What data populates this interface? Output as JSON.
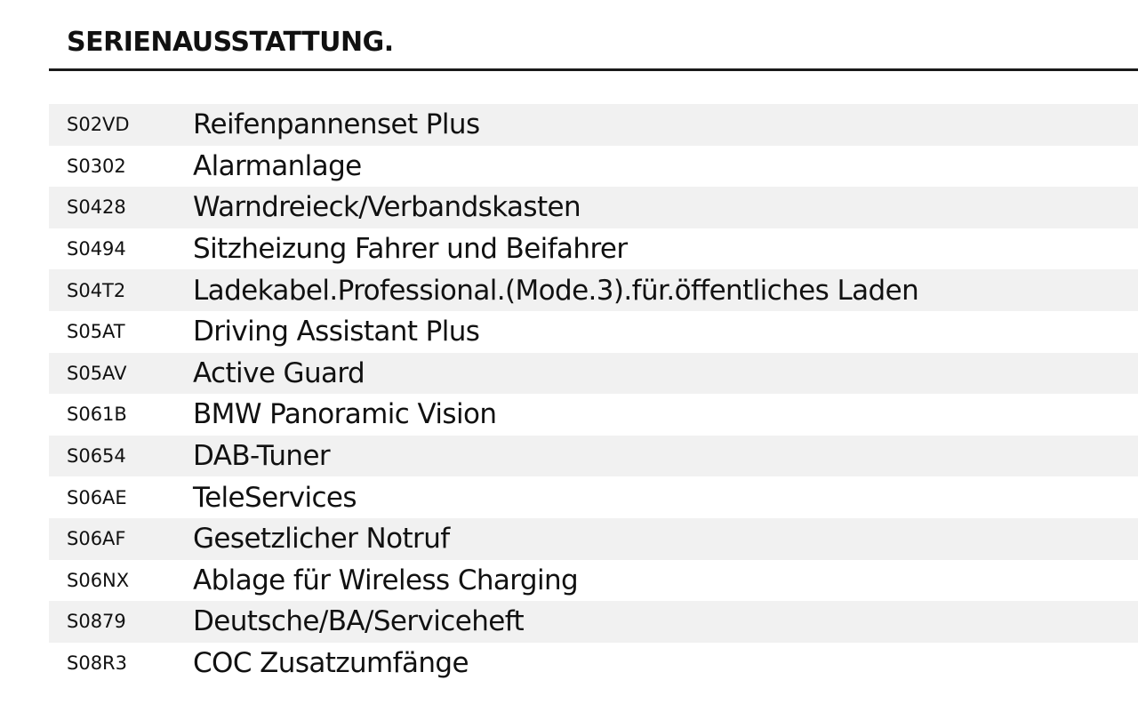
{
  "document": {
    "title": "SERIENAUSSTATTUNG."
  },
  "equipment": {
    "items": [
      {
        "code": "S02VD",
        "label": "Reifenpannenset Plus"
      },
      {
        "code": "S0302",
        "label": "Alarmanlage"
      },
      {
        "code": "S0428",
        "label": "Warndreieck/Verbandskasten"
      },
      {
        "code": "S0494",
        "label": "Sitzheizung Fahrer und Beifahrer"
      },
      {
        "code": "S04T2",
        "label": "Ladekabel.Professional.(Mode.3).für.öffentliches Laden"
      },
      {
        "code": "S05AT",
        "label": "Driving Assistant Plus"
      },
      {
        "code": "S05AV",
        "label": "Active Guard"
      },
      {
        "code": "S061B",
        "label": "BMW Panoramic Vision"
      },
      {
        "code": "S0654",
        "label": "DAB-Tuner"
      },
      {
        "code": "S06AE",
        "label": "TeleServices"
      },
      {
        "code": "S06AF",
        "label": "Gesetzlicher Notruf"
      },
      {
        "code": "S06NX",
        "label": "Ablage für Wireless Charging"
      },
      {
        "code": "S0879",
        "label": "Deutsche/BA/Serviceheft"
      },
      {
        "code": "S08R3",
        "label": "COC Zusatzumfänge"
      }
    ]
  },
  "colors": {
    "text": "#111111",
    "row_shade": "#f1f1f1",
    "rule": "#1a1a1a"
  }
}
